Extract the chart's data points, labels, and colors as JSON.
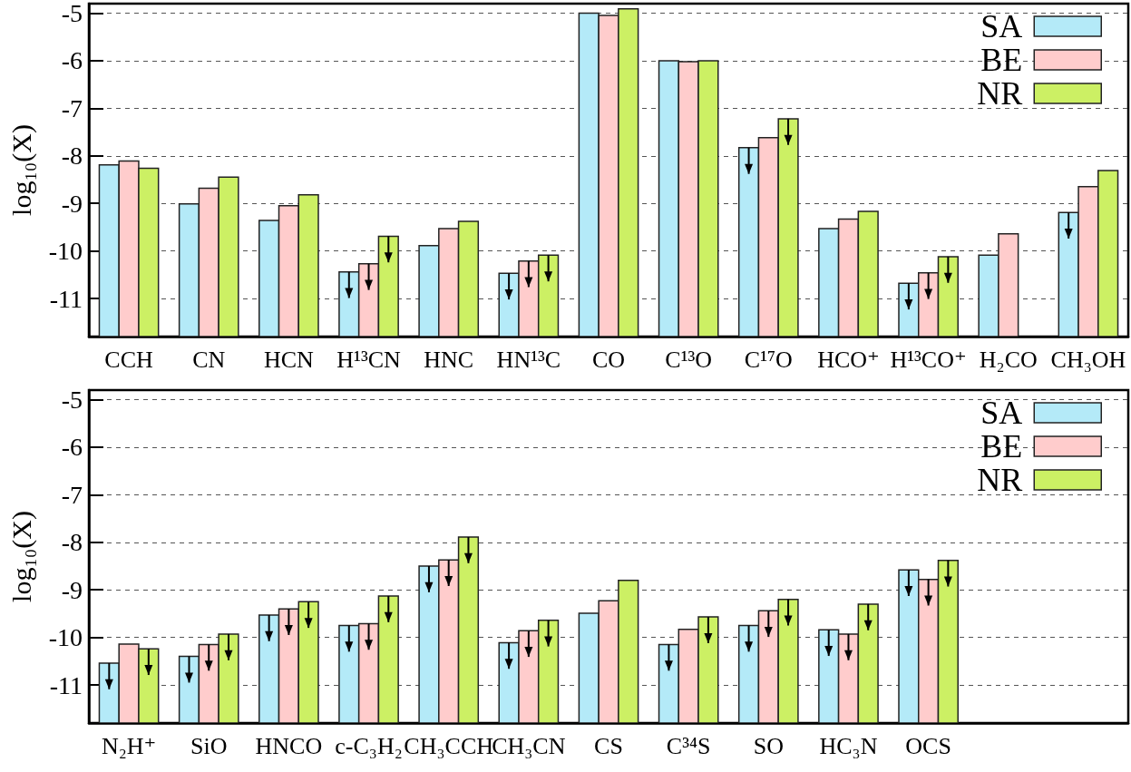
{
  "chart_data": [
    {
      "type": "bar",
      "ylabel": "log₁₀(X)",
      "categories": [
        "CCH",
        "CN",
        "HCN",
        "H¹³CN",
        "HNC",
        "HN¹³C",
        "CO",
        "C¹³O",
        "C¹⁷O",
        "HCO⁺",
        "H¹³CO⁺",
        "H₂CO",
        "CH₃OH"
      ],
      "series": [
        {
          "name": "SA",
          "color": "#b4eaf8",
          "base": [
            -11.8,
            -11.8,
            -11.8,
            -11.8,
            -11.8,
            -11.8,
            -11.8,
            -11.8,
            -11.8,
            -11.8,
            -11.8,
            -11.8,
            -11.8
          ],
          "values": [
            3.61,
            2.79,
            2.44,
            1.36,
            1.91,
            1.33,
            6.8,
            5.8,
            3.97,
            2.27,
            1.12,
            1.71,
            2.61
          ],
          "errors": [
            null,
            null,
            null,
            [
              -10.99,
              -10.44
            ],
            null,
            [
              -11.02,
              -10.47
            ],
            null,
            null,
            [
              -8.38,
              -7.83
            ],
            null,
            [
              -11.23,
              -10.68
            ],
            null,
            [
              -9.74,
              -9.19
            ]
          ]
        },
        {
          "name": "BE",
          "color": "#ffcccc",
          "base": [
            -11.8,
            -11.8,
            -11.8,
            -11.8,
            -11.8,
            -11.8,
            -11.8,
            -11.8,
            -11.8,
            -11.8,
            -11.8,
            -11.8,
            -11.8
          ],
          "values": [
            3.69,
            3.12,
            2.75,
            1.53,
            2.27,
            1.59,
            6.75,
            5.78,
            4.18,
            2.47,
            1.34,
            2.16,
            3.15
          ],
          "errors": [
            null,
            null,
            null,
            [
              -10.82,
              -10.27
            ],
            null,
            [
              -10.76,
              -10.21
            ],
            null,
            null,
            null,
            null,
            [
              -11.01,
              -10.46
            ],
            null,
            null
          ]
        },
        {
          "name": "NR",
          "color": "#ccf064",
          "base": [
            -11.8,
            -11.8,
            -11.8,
            -11.8,
            -11.8,
            -11.8,
            -11.8,
            -11.8,
            -11.8,
            -11.8,
            -11.8,
            null,
            -11.8
          ],
          "values": [
            3.54,
            3.35,
            2.98,
            2.11,
            2.42,
            1.71,
            6.89,
            5.8,
            4.58,
            2.63,
            1.68,
            null,
            3.49
          ],
          "errors": [
            null,
            null,
            null,
            [
              -10.24,
              -9.69
            ],
            null,
            [
              -10.64,
              -10.09
            ],
            null,
            null,
            [
              -7.77,
              -7.22
            ],
            null,
            [
              -10.67,
              -10.12
            ],
            null,
            null
          ]
        }
      ],
      "ylim": [
        -11.8,
        -4.8
      ],
      "yticks": [
        -11,
        -10,
        -9,
        -8,
        -7,
        -6,
        -5
      ],
      "grid": "y",
      "legend": "top right"
    },
    {
      "type": "bar",
      "ylabel": "log₁₀(X)",
      "categories": [
        "N₂H⁺",
        "SiO",
        "HNCO",
        "c-C₃H₂",
        "CH₃CCH",
        "CH₃CN",
        "CS",
        "C³⁴S",
        "SO",
        "HC₃N",
        "OCS",
        null,
        null
      ],
      "series": [
        {
          "name": "SA",
          "color": "#b4eaf8",
          "base": [
            -11.8,
            -11.8,
            -11.8,
            -11.8,
            -11.8,
            -11.8,
            -11.8,
            -11.8,
            -11.8,
            -11.8,
            -11.8,
            null,
            null
          ],
          "values": [
            1.26,
            1.4,
            2.27,
            2.05,
            3.3,
            1.69,
            2.31,
            1.65,
            2.05,
            1.96,
            3.22,
            null,
            null
          ],
          "errors": [
            [
              -11.09,
              -10.54
            ],
            [
              -10.95,
              -10.4
            ],
            [
              -10.08,
              -9.53
            ],
            [
              -10.3,
              -9.75
            ],
            [
              -9.05,
              -8.5
            ],
            [
              -10.66,
              -10.11
            ],
            null,
            [
              -10.7,
              -10.15
            ],
            [
              -10.3,
              -9.75
            ],
            [
              -10.39,
              -9.84
            ],
            [
              -9.13,
              -8.58
            ],
            null,
            null
          ]
        },
        {
          "name": "BE",
          "color": "#ffcccc",
          "base": [
            -11.8,
            -11.8,
            -11.8,
            -11.8,
            -11.8,
            -11.8,
            -11.8,
            -11.8,
            -11.8,
            -11.8,
            -11.8,
            null,
            null
          ],
          "values": [
            1.66,
            1.65,
            2.4,
            2.09,
            3.43,
            1.94,
            2.57,
            1.97,
            2.36,
            1.87,
            3.02,
            null,
            null
          ],
          "errors": [
            null,
            [
              -10.7,
              -10.15
            ],
            [
              -9.95,
              -9.4
            ],
            [
              -10.26,
              -9.71
            ],
            [
              -8.92,
              -8.37
            ],
            [
              -10.41,
              -9.86
            ],
            null,
            null,
            [
              -9.99,
              -9.44
            ],
            [
              -10.48,
              -9.93
            ],
            [
              -9.33,
              -8.78
            ],
            null,
            null
          ]
        },
        {
          "name": "NR",
          "color": "#ccf064",
          "base": [
            -11.8,
            -11.8,
            -11.8,
            -11.8,
            -11.8,
            -11.8,
            -11.8,
            -11.8,
            -11.8,
            -11.8,
            -11.8,
            null,
            null
          ],
          "values": [
            1.56,
            1.87,
            2.55,
            2.67,
            3.91,
            2.16,
            3.0,
            2.23,
            2.6,
            2.5,
            3.42,
            null,
            null
          ],
          "errors": [
            [
              -10.79,
              -10.24
            ],
            [
              -10.48,
              -9.93
            ],
            [
              -9.8,
              -9.25
            ],
            [
              -9.68,
              -9.13
            ],
            [
              -8.44,
              -7.89
            ],
            [
              -10.19,
              -9.64
            ],
            null,
            [
              -10.12,
              -9.57
            ],
            [
              -9.75,
              -9.2
            ],
            [
              -9.85,
              -9.3
            ],
            [
              -8.93,
              -8.38
            ],
            null,
            null
          ]
        }
      ],
      "ylim": [
        -11.8,
        -4.8
      ],
      "yticks": [
        -11,
        -10,
        -9,
        -8,
        -7,
        -6,
        -5
      ],
      "grid": "y",
      "legend": "top right"
    }
  ]
}
